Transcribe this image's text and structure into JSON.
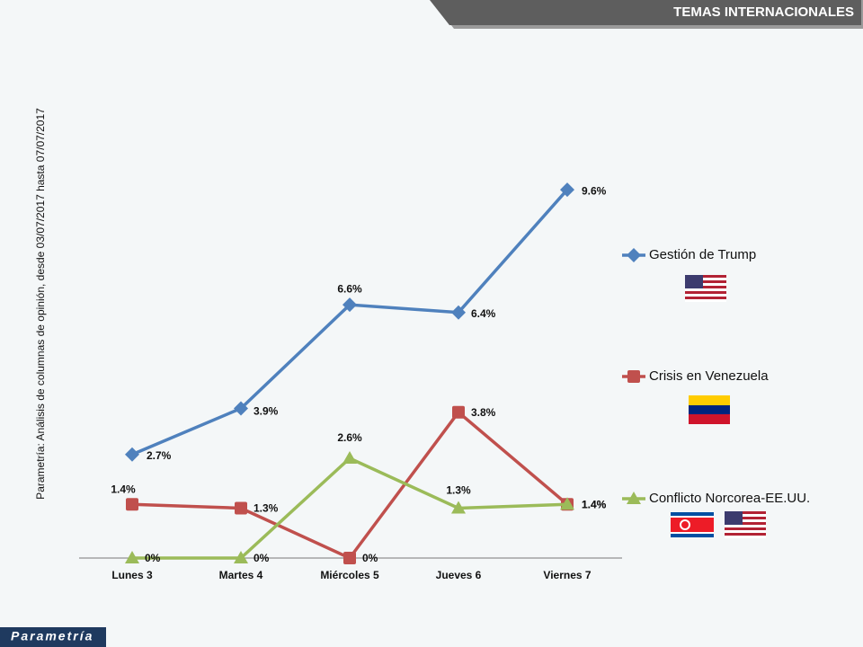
{
  "header": "TEMAS INTERNACIONALES",
  "source_note": "Parametría: Análisis de columnas de opinión, desde 03/07/2017 hasta 07/07/2017",
  "logo": "Parametría",
  "chart_data": {
    "type": "line",
    "categories": [
      "Lunes 3",
      "Martes 4",
      "Miércoles 5",
      "Jueves 6",
      "Viernes 7"
    ],
    "ylim": [
      0,
      10
    ],
    "legend": "right",
    "series": [
      {
        "name": "Gestión de Trump",
        "color": "#4f81bd",
        "marker": "diamond",
        "values": [
          2.7,
          3.9,
          6.6,
          6.4,
          9.6
        ],
        "value_labels": [
          "2.7%",
          "3.9%",
          "6.6%",
          "6.4%",
          "9.6%"
        ]
      },
      {
        "name": "Crisis en Venezuela",
        "color": "#c0504d",
        "marker": "square",
        "values": [
          1.4,
          1.3,
          0,
          3.8,
          1.4
        ],
        "value_labels": [
          "1.4%",
          "1.3%",
          "0%",
          "3.8%",
          "1.4%"
        ]
      },
      {
        "name": "Conflicto Norcorea-EE.UU.",
        "color": "#9bbb59",
        "marker": "triangle",
        "values": [
          0,
          0,
          2.6,
          1.3,
          1.4
        ],
        "value_labels": [
          "0%",
          "0%",
          "2.6%",
          "1.3%",
          "1.4%"
        ]
      }
    ]
  }
}
